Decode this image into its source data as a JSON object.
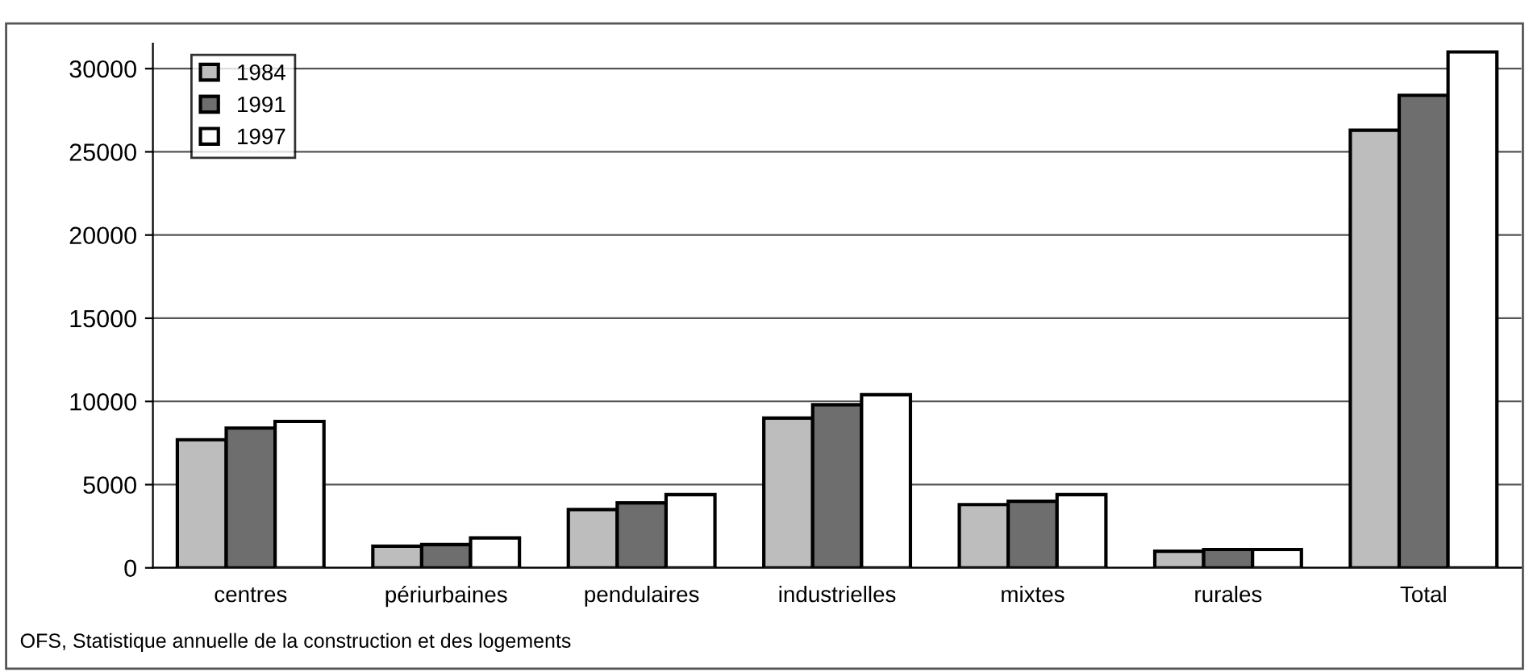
{
  "chart_data": {
    "type": "bar",
    "categories": [
      "centres",
      "périurbaines",
      "pendulaires",
      "industrielles",
      "mixtes",
      "rurales",
      "Total"
    ],
    "series": [
      {
        "name": "1984",
        "color": "#bdbdbd",
        "values": [
          7700,
          1300,
          3500,
          9000,
          3800,
          1000,
          26300
        ]
      },
      {
        "name": "1991",
        "color": "#6e6e6e",
        "values": [
          8400,
          1400,
          3900,
          9800,
          4000,
          1100,
          28400
        ]
      },
      {
        "name": "1997",
        "color": "#ffffff",
        "values": [
          8800,
          1800,
          4400,
          10400,
          4400,
          1100,
          31000
        ]
      }
    ],
    "ylim": [
      0,
      31500
    ],
    "yticks": [
      0,
      5000,
      10000,
      15000,
      20000,
      25000,
      30000
    ],
    "grid": "y",
    "legend": "top left",
    "annotations": [
      "OFS, Statistique annuelle de la construction et des logements"
    ]
  }
}
